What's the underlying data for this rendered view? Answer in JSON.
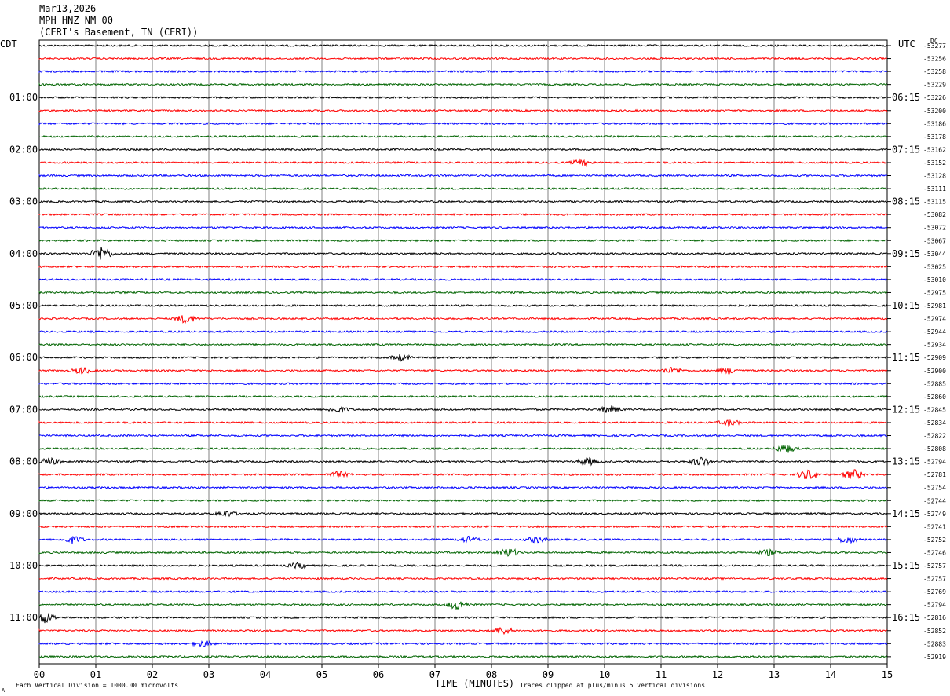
{
  "header": {
    "date": "Mar13,2026",
    "station": "MPH HNZ NM 00",
    "location": "(CERI's Basement, TN (CERI))"
  },
  "left_tz": "CDT",
  "right_tz": "UTC",
  "dc_label": "DC",
  "footer": {
    "scale_note": "Each Vertical Division = 1000.00 microvolts",
    "clip_note": "Traces clipped at plus/minus 5 vertical divisions",
    "corner_mark": "A"
  },
  "chart_data": {
    "type": "line",
    "xlabel": "TIME (MINUTES)",
    "xlim": [
      0,
      15
    ],
    "x_ticks": [
      "00",
      "01",
      "02",
      "03",
      "04",
      "05",
      "06",
      "07",
      "08",
      "09",
      "10",
      "11",
      "12",
      "13",
      "14",
      "15"
    ],
    "trace_colors": [
      "#000000",
      "#ff0000",
      "#0000ff",
      "#006400"
    ],
    "left_hour_labels": [
      "01:00",
      "02:00",
      "03:00",
      "04:00",
      "05:00",
      "06:00",
      "07:00",
      "08:00",
      "09:00",
      "10:00",
      "11:00"
    ],
    "right_hour_labels": [
      "06:15",
      "07:15",
      "08:15",
      "09:15",
      "10:15",
      "11:15",
      "12:15",
      "13:15",
      "14:15",
      "15:15",
      "16:15"
    ],
    "dc_offsets": [
      "-53277",
      "-53256",
      "-53258",
      "-53229",
      "-53226",
      "-53200",
      "-53186",
      "-53178",
      "-53162",
      "-53152",
      "-53128",
      "-53111",
      "-53115",
      "-53082",
      "-53072",
      "-53067",
      "-53044",
      "-53025",
      "-53010",
      "-52975",
      "-52981",
      "-52974",
      "-52944",
      "-52934",
      "-52909",
      "-52900",
      "-52885",
      "-52860",
      "-52845",
      "-52834",
      "-52822",
      "-52808",
      "-52794",
      "-52781",
      "-52754",
      "-52744",
      "-52749",
      "-52741",
      "-52752",
      "-52746",
      "-52757",
      "-52757",
      "-52769",
      "-52794",
      "-52816",
      "-52852",
      "-52883",
      "-52919"
    ],
    "events": [
      {
        "trace": 16,
        "minute": 1.1,
        "amp": 1.0
      },
      {
        "trace": 21,
        "minute": 2.6,
        "amp": 0.6
      },
      {
        "trace": 9,
        "minute": 9.6,
        "amp": 0.4
      },
      {
        "trace": 24,
        "minute": 6.4,
        "amp": 0.4
      },
      {
        "trace": 25,
        "minute": 0.75,
        "amp": 0.4
      },
      {
        "trace": 25,
        "minute": 11.2,
        "amp": 0.4
      },
      {
        "trace": 25,
        "minute": 12.2,
        "amp": 0.4
      },
      {
        "trace": 28,
        "minute": 5.3,
        "amp": 0.4
      },
      {
        "trace": 28,
        "minute": 10.1,
        "amp": 0.5
      },
      {
        "trace": 29,
        "minute": 12.2,
        "amp": 0.4
      },
      {
        "trace": 31,
        "minute": 13.2,
        "amp": 0.6
      },
      {
        "trace": 32,
        "minute": 0.2,
        "amp": 0.5
      },
      {
        "trace": 32,
        "minute": 9.7,
        "amp": 0.5
      },
      {
        "trace": 32,
        "minute": 11.7,
        "amp": 0.6
      },
      {
        "trace": 33,
        "minute": 13.6,
        "amp": 0.7
      },
      {
        "trace": 33,
        "minute": 14.4,
        "amp": 0.7
      },
      {
        "trace": 33,
        "minute": 5.3,
        "amp": 0.4
      },
      {
        "trace": 36,
        "minute": 3.3,
        "amp": 0.4
      },
      {
        "trace": 38,
        "minute": 0.6,
        "amp": 0.5
      },
      {
        "trace": 38,
        "minute": 7.6,
        "amp": 0.4
      },
      {
        "trace": 38,
        "minute": 8.8,
        "amp": 0.4
      },
      {
        "trace": 38,
        "minute": 14.3,
        "amp": 0.5
      },
      {
        "trace": 39,
        "minute": 8.3,
        "amp": 0.6
      },
      {
        "trace": 39,
        "minute": 12.9,
        "amp": 0.4
      },
      {
        "trace": 40,
        "minute": 4.6,
        "amp": 0.4
      },
      {
        "trace": 43,
        "minute": 7.4,
        "amp": 0.7
      },
      {
        "trace": 44,
        "minute": 0.1,
        "amp": 0.8
      },
      {
        "trace": 45,
        "minute": 8.2,
        "amp": 0.5
      },
      {
        "trace": 46,
        "minute": 2.9,
        "amp": 0.4
      }
    ]
  }
}
